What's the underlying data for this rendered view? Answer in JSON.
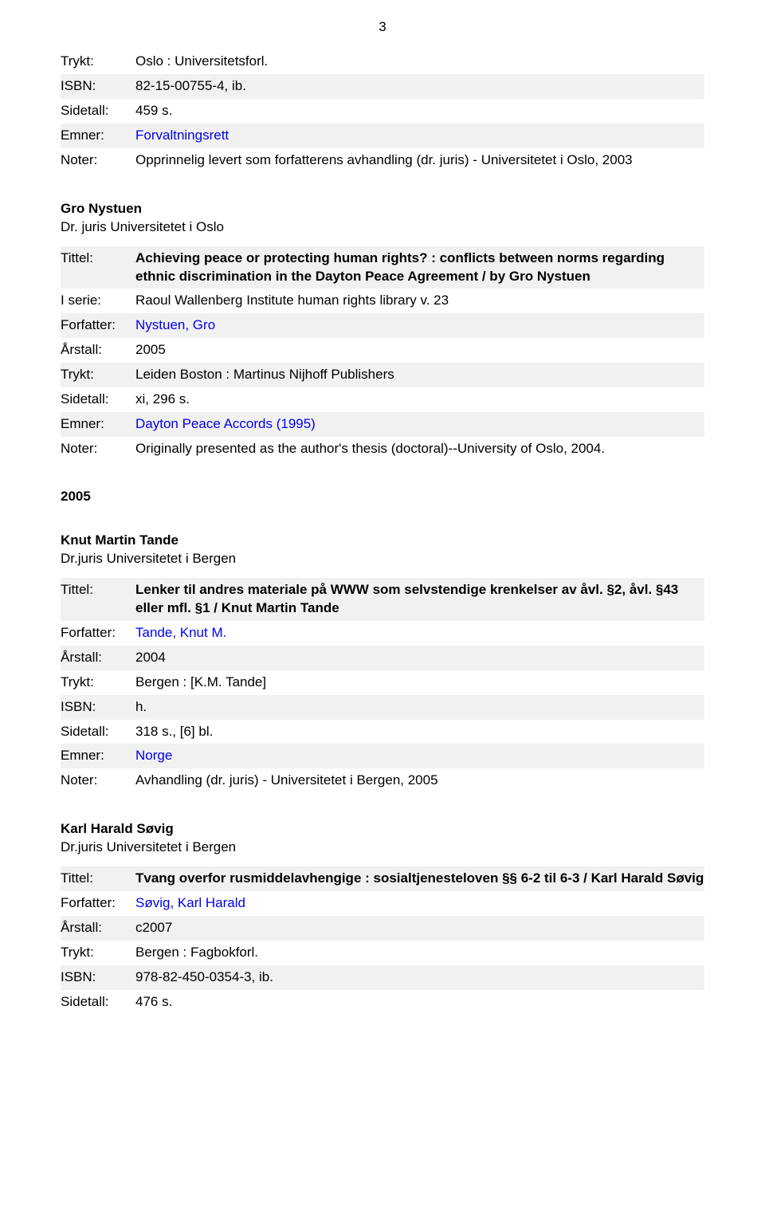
{
  "page_number": "3",
  "rec1_rows": [
    {
      "label": "Trykt:",
      "value": "Oslo : Universitetsforl.",
      "striped": false,
      "link": false
    },
    {
      "label": "ISBN:",
      "value": "82-15-00755-4, ib.",
      "striped": true,
      "link": false
    },
    {
      "label": "Sidetall:",
      "value": "459 s.",
      "striped": false,
      "link": false
    },
    {
      "label": "Emner:",
      "value": "Forvaltningsrett",
      "striped": true,
      "link": true
    },
    {
      "label": "Noter:",
      "value": "Opprinnelig levert som forfatterens avhandling (dr. juris) - Universitetet i Oslo, 2003",
      "striped": false,
      "link": false
    }
  ],
  "rec2_heading1": "Gro Nystuen",
  "rec2_heading2": "Dr. juris Universitetet i Oslo",
  "rec2_title_label": "Tittel:",
  "rec2_title": "Achieving peace or protecting human rights? : conflicts between norms regarding ethnic discrimination in the Dayton Peace Agreement / by Gro Nystuen",
  "rec2_rows": [
    {
      "label": "I serie:",
      "value": "Raoul Wallenberg Institute human rights library v. 23",
      "striped": false,
      "link": false
    },
    {
      "label": "Forfatter:",
      "value": "Nystuen, Gro",
      "striped": true,
      "link": true
    },
    {
      "label": "Årstall:",
      "value": "2005",
      "striped": false,
      "link": false
    },
    {
      "label": "Trykt:",
      "value": "Leiden Boston : Martinus Nijhoff Publishers",
      "striped": true,
      "link": false
    },
    {
      "label": "Sidetall:",
      "value": "xi, 296 s.",
      "striped": false,
      "link": false
    },
    {
      "label": "Emner:",
      "value": "Dayton Peace Accords (1995)",
      "striped": true,
      "link": true
    },
    {
      "label": "Noter:",
      "value": "Originally presented as the author's thesis (doctoral)--University of Oslo, 2004.",
      "striped": false,
      "link": false
    }
  ],
  "year_heading": "2005",
  "rec3_heading1": "Knut Martin Tande",
  "rec3_heading2": "Dr.juris Universitetet i Bergen",
  "rec3_title_label": "Tittel:",
  "rec3_title": "Lenker til andres materiale på WWW som selvstendige krenkelser av åvl. §2, åvl. §43 eller mfl. §1 / Knut Martin Tande",
  "rec3_rows": [
    {
      "label": "Forfatter:",
      "value": "Tande, Knut M.",
      "striped": false,
      "link": true
    },
    {
      "label": "Årstall:",
      "value": "2004",
      "striped": true,
      "link": false
    },
    {
      "label": "Trykt:",
      "value": "Bergen : [K.M. Tande]",
      "striped": false,
      "link": false
    },
    {
      "label": "ISBN:",
      "value": "h.",
      "striped": true,
      "link": false
    },
    {
      "label": "Sidetall:",
      "value": "318 s., [6] bl.",
      "striped": false,
      "link": false
    },
    {
      "label": "Emner:",
      "value": "Norge",
      "striped": true,
      "link": true
    },
    {
      "label": "Noter:",
      "value": "Avhandling (dr. juris) - Universitetet i Bergen, 2005",
      "striped": false,
      "link": false
    }
  ],
  "rec4_heading1": "Karl Harald Søvig",
  "rec4_heading2": "Dr.juris Universitetet i Bergen",
  "rec4_title_label": "Tittel:",
  "rec4_title": "Tvang overfor rusmiddelavhengige : sosialtjenesteloven §§ 6-2 til 6-3 / Karl Harald Søvig",
  "rec4_rows": [
    {
      "label": "Forfatter:",
      "value": "Søvig, Karl Harald",
      "striped": false,
      "link": true
    },
    {
      "label": "Årstall:",
      "value": "c2007",
      "striped": true,
      "link": false
    },
    {
      "label": "Trykt:",
      "value": "Bergen : Fagbokforl.",
      "striped": false,
      "link": false
    },
    {
      "label": "ISBN:",
      "value": "978-82-450-0354-3, ib.",
      "striped": true,
      "link": false
    },
    {
      "label": "Sidetall:",
      "value": "476 s.",
      "striped": false,
      "link": false
    }
  ]
}
